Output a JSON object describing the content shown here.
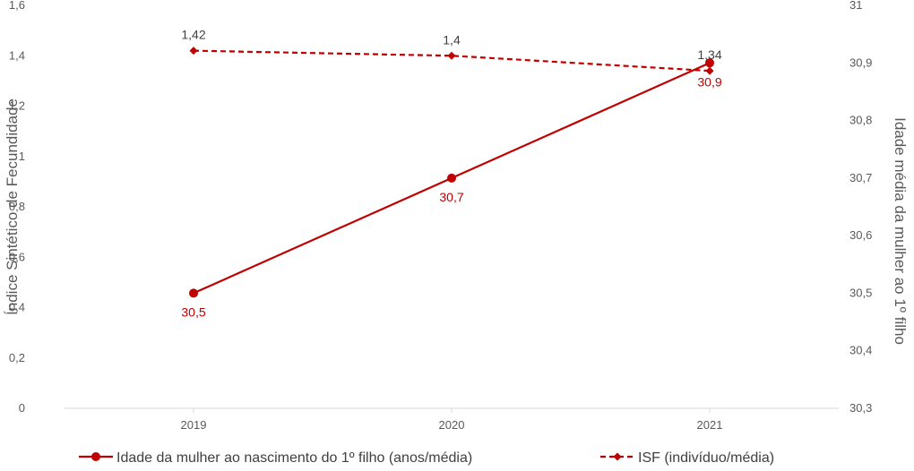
{
  "chart_data": {
    "type": "line",
    "categories": [
      "2019",
      "2020",
      "2021"
    ],
    "series": [
      {
        "name": "Idade da mulher ao nascimento do 1º filho (anos/média)",
        "axis": "right",
        "values": [
          30.5,
          30.7,
          30.9
        ],
        "labels": [
          "30,5",
          "30,7",
          "30,9"
        ],
        "color": "#c00000",
        "line_style": "solid",
        "marker": "circle"
      },
      {
        "name": "ISF (indivíduo/média)",
        "axis": "left",
        "values": [
          1.42,
          1.4,
          1.34
        ],
        "labels": [
          "1,42",
          "1,4",
          "1,34"
        ],
        "color": "#c00000",
        "line_style": "dashed",
        "marker": "diamond"
      }
    ],
    "y_left": {
      "label": "Índice Sintético de Fecundidade",
      "ylim": [
        0,
        1.6
      ],
      "ticks": [
        0,
        0.2,
        0.4,
        0.6,
        0.8,
        1,
        1.2,
        1.4,
        1.6
      ],
      "tick_labels": [
        "0",
        "0,2",
        "0,4",
        "0,6",
        "0,8",
        "1",
        "1,2",
        "1,4",
        "1,6"
      ]
    },
    "y_right": {
      "label": "Idade média da mulher ao 1º filho",
      "ylim": [
        30.3,
        31
      ],
      "ticks": [
        30.3,
        30.4,
        30.5,
        30.6,
        30.7,
        30.8,
        30.9,
        31
      ],
      "tick_labels": [
        "30,3",
        "30,4",
        "30,5",
        "30,6",
        "30,7",
        "30,8",
        "30,9",
        "31"
      ]
    },
    "grid": false,
    "legend_position": "bottom"
  }
}
